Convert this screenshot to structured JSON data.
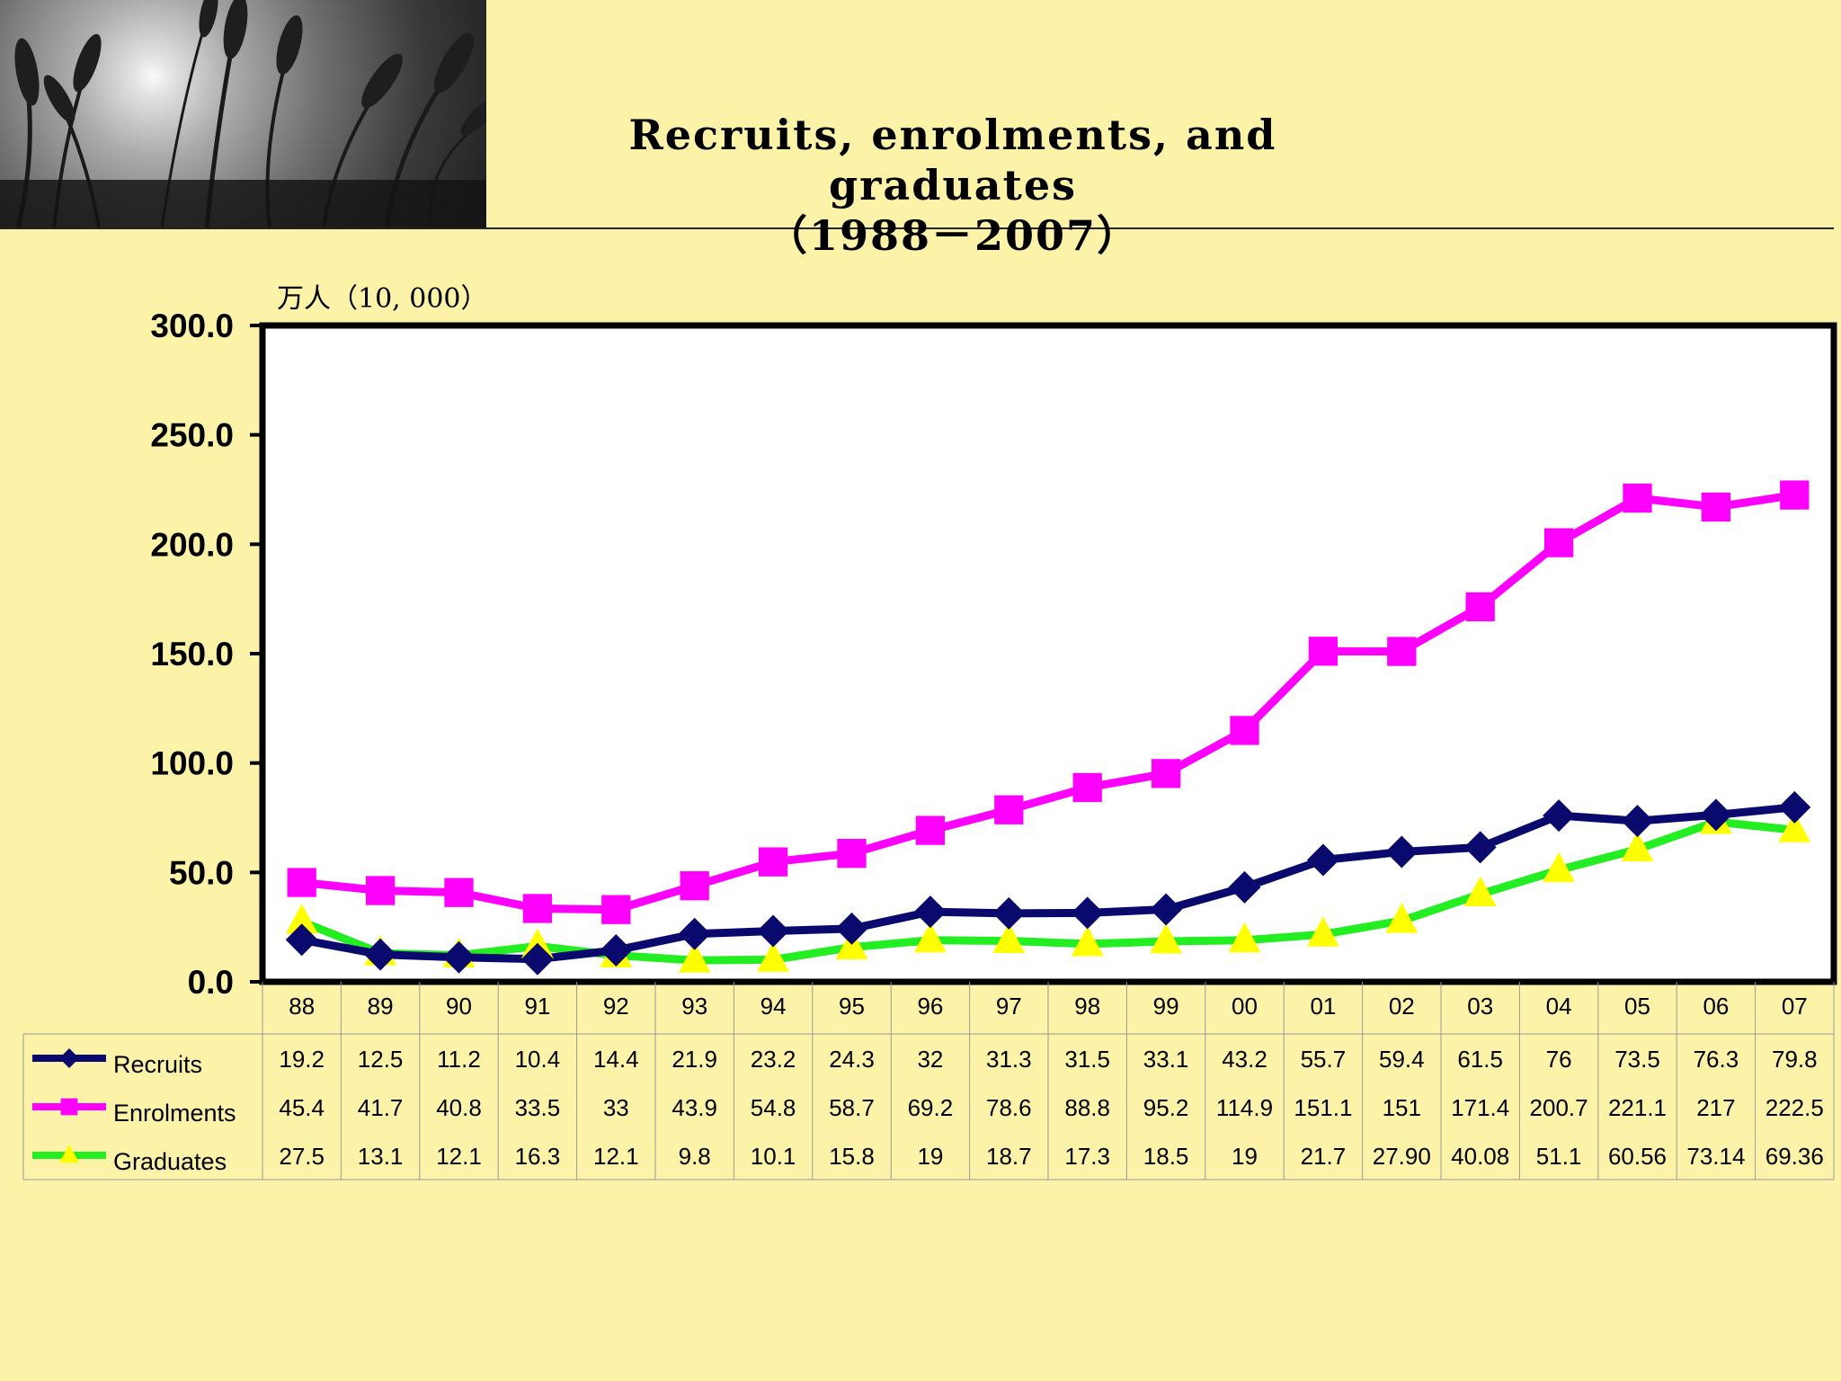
{
  "page": {
    "title_line1": "Recruits, enrolments, and graduates",
    "title_line2": "（1988－2007）",
    "unit_label": "万人（10, 000）"
  },
  "colors": {
    "background": "#FCF3A9",
    "plot_background": "#FFFFFF",
    "recruits": "#0A0A6E",
    "enrolments": "#FF00FF",
    "graduates_line": "#22EE22",
    "graduates_marker": "#FFFF00"
  },
  "chart_data": {
    "type": "line",
    "title": "Recruits, enrolments, and graduates (1988－2007)",
    "ylabel": "万人（10, 000）",
    "ylim": [
      0,
      300
    ],
    "yticks": [
      "0.0",
      "50.0",
      "100.0",
      "150.0",
      "200.0",
      "250.0",
      "300.0"
    ],
    "grid": false,
    "legend_placement": "data-table-left",
    "categories": [
      "88",
      "89",
      "90",
      "91",
      "92",
      "93",
      "94",
      "95",
      "96",
      "97",
      "98",
      "99",
      "00",
      "01",
      "02",
      "03",
      "04",
      "05",
      "06",
      "07"
    ],
    "series": [
      {
        "name": "Recruits",
        "marker": "diamond",
        "values": [
          19.2,
          12.5,
          11.2,
          10.4,
          14.4,
          21.9,
          23.2,
          24.3,
          32,
          31.3,
          31.5,
          33.1,
          43.2,
          55.7,
          59.4,
          61.5,
          76,
          73.5,
          76.3,
          79.8
        ],
        "labels": [
          "19.2",
          "12.5",
          "11.2",
          "10.4",
          "14.4",
          "21.9",
          "23.2",
          "24.3",
          "32",
          "31.3",
          "31.5",
          "33.1",
          "43.2",
          "55.7",
          "59.4",
          "61.5",
          "76",
          "73.5",
          "76.3",
          "79.8"
        ]
      },
      {
        "name": "Enrolments",
        "marker": "square",
        "values": [
          45.4,
          41.7,
          40.8,
          33.5,
          33,
          43.9,
          54.8,
          58.7,
          69.2,
          78.6,
          88.8,
          95.2,
          114.9,
          151.1,
          151,
          171.4,
          200.7,
          221.1,
          217,
          222.5
        ],
        "labels": [
          "45.4",
          "41.7",
          "40.8",
          "33.5",
          "33",
          "43.9",
          "54.8",
          "58.7",
          "69.2",
          "78.6",
          "88.8",
          "95.2",
          "114.9",
          "151.1",
          "151",
          "171.4",
          "200.7",
          "221.1",
          "217",
          "222.5"
        ]
      },
      {
        "name": "Graduates",
        "marker": "triangle",
        "values": [
          27.5,
          13.1,
          12.1,
          16.3,
          12.1,
          9.8,
          10.1,
          15.8,
          19,
          18.7,
          17.3,
          18.5,
          19,
          21.7,
          27.9,
          40.08,
          51.1,
          60.56,
          73.14,
          69.36
        ],
        "labels": [
          "27.5",
          "13.1",
          "12.1",
          "16.3",
          "12.1",
          "9.8",
          "10.1",
          "15.8",
          "19",
          "18.7",
          "17.3",
          "18.5",
          "19",
          "21.7",
          "27.90",
          "40.08",
          "51.1",
          "60.56",
          "73.14",
          "69.36"
        ]
      }
    ]
  }
}
